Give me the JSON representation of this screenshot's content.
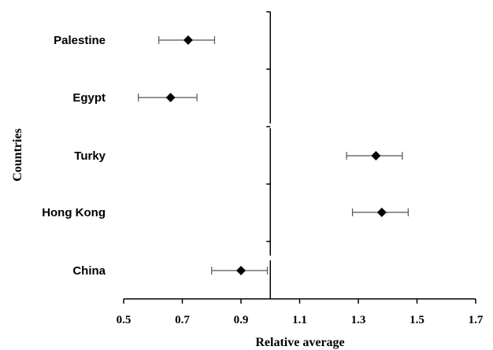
{
  "chart_data": {
    "type": "scatter",
    "orientation": "horizontal",
    "categories": [
      "Palestine",
      "Egypt",
      "Turky",
      "Hong Kong",
      "China"
    ],
    "values": [
      0.72,
      0.66,
      1.36,
      1.38,
      0.9
    ],
    "error_low": [
      0.62,
      0.55,
      1.26,
      1.28,
      0.8
    ],
    "error_high": [
      0.81,
      0.75,
      1.45,
      1.47,
      0.99
    ],
    "xlabel": "Relative average",
    "ylabel": "Countries",
    "xlim": [
      0.5,
      1.7
    ],
    "xticks": [
      0.5,
      0.7,
      0.9,
      1.1,
      1.3,
      1.5,
      1.7
    ],
    "xtick_labels": [
      "0.5",
      "0.7",
      "0.9",
      "1.1",
      "1.3",
      "1.5",
      "1.7"
    ],
    "reference_line": 1.0,
    "marker": "diamond",
    "marker_color": "#000000",
    "errorbar_color": "#555555",
    "grid": false
  }
}
